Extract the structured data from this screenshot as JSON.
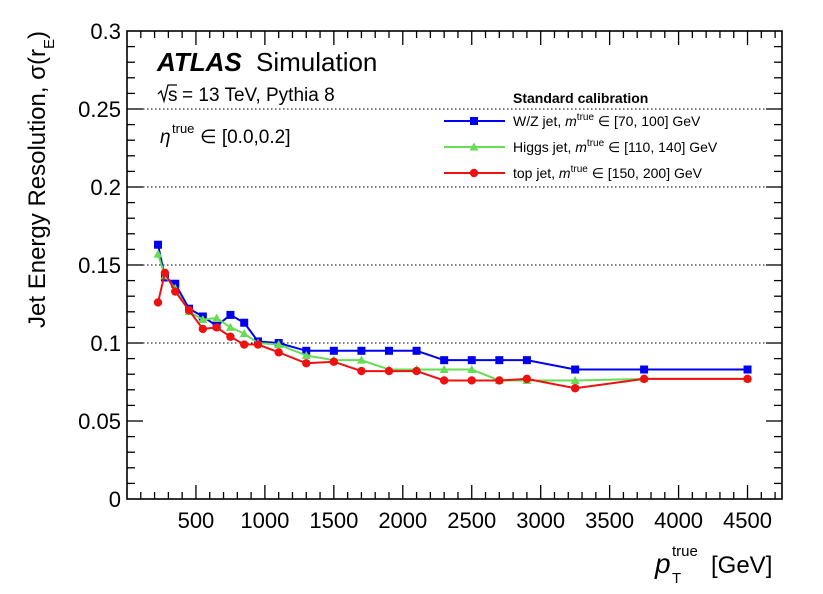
{
  "chart_data": {
    "type": "line",
    "title": "",
    "xlabel_main": "p",
    "xlabel_sub": "T",
    "xlabel_sup": "true",
    "xlabel_unit": "[GeV]",
    "ylabel_main": "Jet Energy Resolution, σ(r",
    "ylabel_sub": "E",
    "ylabel_close": ")",
    "xlim": [
      0,
      4750
    ],
    "ylim": [
      0,
      0.3
    ],
    "x_ticks": [
      500,
      1000,
      1500,
      2000,
      2500,
      3000,
      3500,
      4000,
      4500
    ],
    "x_tick_labels": [
      "500",
      "1000",
      "1500",
      "2000",
      "2500",
      "3000",
      "3500",
      "4000",
      "4500"
    ],
    "y_ticks": [
      0,
      0.05,
      0.1,
      0.15,
      0.2,
      0.25,
      0.3
    ],
    "y_tick_labels": [
      "0",
      "0.05",
      "0.1",
      "0.15",
      "0.2",
      "0.25",
      "0.3"
    ],
    "grid_y_values": [
      0.1,
      0.15,
      0.2,
      0.25
    ],
    "series": [
      {
        "name": "W/Z jet",
        "label_prefix": "W/Z jet, ",
        "mass_range": "[70, 100] GeV",
        "color": "#0000ee",
        "marker": "square",
        "x": [
          225,
          275,
          350,
          450,
          550,
          650,
          750,
          850,
          950,
          1100,
          1300,
          1500,
          1700,
          1900,
          2100,
          2300,
          2500,
          2700,
          2900,
          3250,
          3750,
          4500
        ],
        "y": [
          0.163,
          0.142,
          0.138,
          0.122,
          0.117,
          0.111,
          0.118,
          0.113,
          0.101,
          0.1,
          0.095,
          0.095,
          0.095,
          0.095,
          0.095,
          0.089,
          0.089,
          0.089,
          0.089,
          0.083,
          0.083,
          0.083
        ]
      },
      {
        "name": "Higgs jet",
        "label_prefix": "Higgs jet, ",
        "mass_range": "[110, 140] GeV",
        "color": "#66dd55",
        "marker": "triangle",
        "x": [
          225,
          275,
          350,
          450,
          550,
          650,
          750,
          850,
          950,
          1100,
          1300,
          1500,
          1700,
          1900,
          2100,
          2300,
          2500,
          2700,
          2900,
          3250,
          3750,
          4500
        ],
        "y": [
          0.157,
          0.143,
          0.135,
          0.12,
          0.115,
          0.116,
          0.11,
          0.106,
          0.1,
          0.099,
          0.092,
          0.089,
          0.089,
          0.083,
          0.083,
          0.083,
          0.083,
          0.076,
          0.076,
          0.076,
          0.077,
          0.077
        ]
      },
      {
        "name": "top jet",
        "label_prefix": "top jet, ",
        "mass_range": "[150, 200] GeV",
        "color": "#ee1111",
        "marker": "circle",
        "x": [
          225,
          275,
          350,
          450,
          550,
          650,
          750,
          850,
          950,
          1100,
          1300,
          1500,
          1700,
          1900,
          2100,
          2300,
          2500,
          2700,
          2900,
          3250,
          3750,
          4500
        ],
        "y": [
          0.126,
          0.145,
          0.133,
          0.121,
          0.109,
          0.11,
          0.104,
          0.099,
          0.099,
          0.094,
          0.087,
          0.088,
          0.082,
          0.082,
          0.082,
          0.076,
          0.076,
          0.076,
          0.077,
          0.071,
          0.077,
          0.077
        ]
      }
    ],
    "legend": {
      "title": "Standard calibration",
      "placement": "top-right",
      "mass_symbol": "m",
      "mass_sup": "true",
      "element_of": "∈"
    },
    "annotations": {
      "experiment": "ATLAS",
      "label": "Simulation",
      "energy_line": "= 13 TeV, Pythia 8",
      "sqrt_s": "s",
      "eta_symbol": "η",
      "eta_sup": "true",
      "eta_range": "∈ [0.0,0.2]"
    }
  }
}
